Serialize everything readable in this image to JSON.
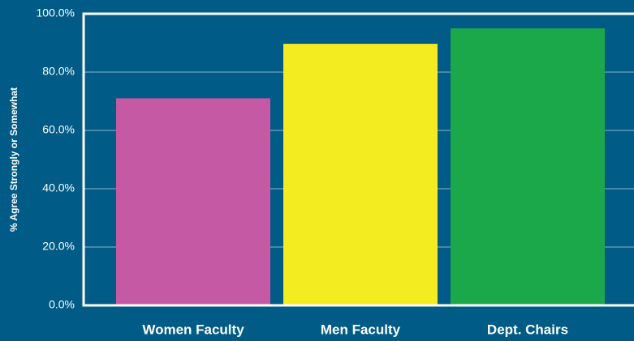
{
  "chart_data": {
    "type": "bar",
    "y_label": "% Agree Strongly or Somewhat",
    "categories": [
      "Women Faculty",
      "Men Faculty",
      "Dept. Chairs"
    ],
    "values": [
      71,
      89.7,
      95
    ],
    "colors": [
      "#c659a3",
      "#f2ec21",
      "#1aa84a"
    ],
    "ylim": [
      0,
      100
    ],
    "yticks": [
      {
        "value": 0,
        "label": "0.0%"
      },
      {
        "value": 20,
        "label": "20.0%"
      },
      {
        "value": 40,
        "label": "40.0%"
      },
      {
        "value": 60,
        "label": "60.0%"
      },
      {
        "value": 80,
        "label": "80.0%"
      },
      {
        "value": 100,
        "label": "100.0%"
      }
    ],
    "grid": true
  }
}
